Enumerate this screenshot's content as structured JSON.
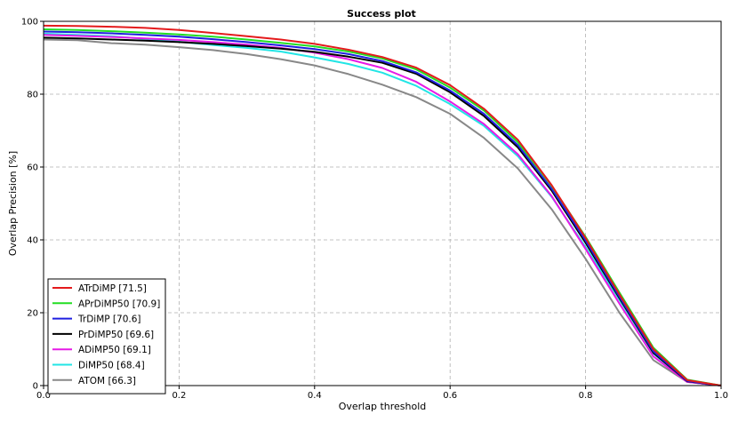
{
  "chart_data": {
    "type": "line",
    "title": "Success plot",
    "xlabel": "Overlap threshold",
    "ylabel": "Overlap Precision [%]",
    "xlim": [
      0.0,
      1.0
    ],
    "ylim": [
      0,
      100
    ],
    "xticks": [
      "0.0",
      "0.2",
      "0.4",
      "0.6",
      "0.8",
      "1.0"
    ],
    "yticks": [
      "0",
      "20",
      "40",
      "60",
      "80",
      "100"
    ],
    "grid": true,
    "legend_position": "lower-left",
    "x": [
      0.0,
      0.05,
      0.1,
      0.15,
      0.2,
      0.25,
      0.3,
      0.35,
      0.4,
      0.45,
      0.5,
      0.55,
      0.6,
      0.65,
      0.7,
      0.75,
      0.8,
      0.85,
      0.9,
      0.95,
      1.0
    ],
    "series": [
      {
        "name": "ATrDiMP [71.5]",
        "color": "#e41a1c",
        "values": [
          98.8,
          98.7,
          98.5,
          98.2,
          97.6,
          96.8,
          95.9,
          95.0,
          93.8,
          92.2,
          90.2,
          87.3,
          82.5,
          76.0,
          67.5,
          55.0,
          40.5,
          25.0,
          10.0,
          1.5,
          0.0
        ]
      },
      {
        "name": "APrDiMP50 [70.9]",
        "color": "#22dd22",
        "values": [
          97.8,
          97.6,
          97.3,
          96.9,
          96.4,
          95.8,
          95.0,
          94.1,
          93.1,
          91.7,
          89.8,
          86.8,
          81.8,
          75.5,
          66.8,
          54.8,
          40.8,
          25.5,
          10.4,
          1.6,
          0.0
        ]
      },
      {
        "name": "TrDiMP [70.6]",
        "color": "#1f1fe0",
        "values": [
          97.2,
          97.0,
          96.7,
          96.3,
          95.8,
          95.1,
          94.3,
          93.4,
          92.4,
          91.0,
          89.1,
          86.0,
          81.0,
          74.6,
          66.0,
          54.0,
          39.8,
          24.4,
          9.4,
          1.3,
          0.0
        ]
      },
      {
        "name": "PrDiMP50 [69.6]",
        "color": "#000000",
        "values": [
          95.5,
          95.3,
          95.0,
          94.7,
          94.3,
          93.8,
          93.2,
          92.5,
          91.6,
          90.3,
          88.6,
          85.6,
          80.5,
          74.0,
          65.4,
          53.5,
          39.2,
          24.0,
          9.0,
          1.2,
          0.0
        ]
      },
      {
        "name": "ADiMP50 [69.1]",
        "color": "#e61ae6",
        "values": [
          96.3,
          96.0,
          95.7,
          95.3,
          94.9,
          94.3,
          93.6,
          92.7,
          91.4,
          89.6,
          87.2,
          83.4,
          78.0,
          71.8,
          63.5,
          52.0,
          37.5,
          22.5,
          8.0,
          1.0,
          0.0
        ]
      },
      {
        "name": "DiMP50 [68.4]",
        "color": "#22e5e5",
        "values": [
          96.6,
          96.3,
          95.9,
          95.2,
          94.4,
          93.5,
          92.7,
          91.7,
          90.1,
          88.3,
          85.9,
          82.3,
          77.3,
          71.3,
          63.0,
          51.8,
          38.0,
          23.5,
          8.8,
          1.0,
          0.0
        ]
      },
      {
        "name": "ATOM [66.3]",
        "color": "#888888",
        "values": [
          95.0,
          94.8,
          94.0,
          93.6,
          92.9,
          92.1,
          91.0,
          89.6,
          87.9,
          85.5,
          82.6,
          79.2,
          74.6,
          68.0,
          59.6,
          48.4,
          34.8,
          20.0,
          7.0,
          1.0,
          0.0
        ]
      }
    ]
  }
}
